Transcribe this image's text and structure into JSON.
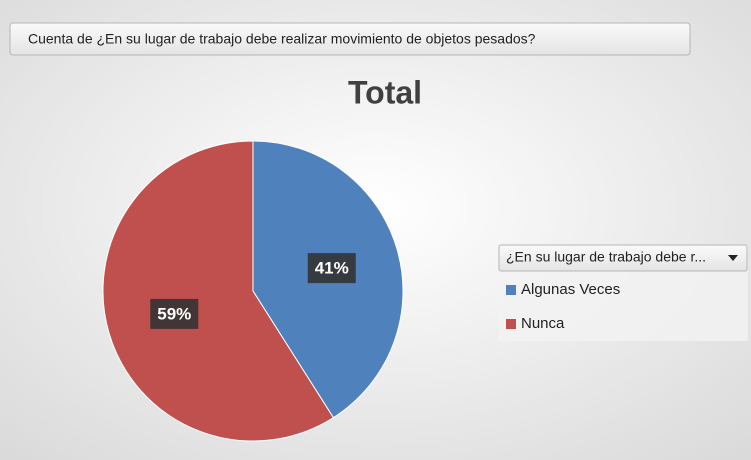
{
  "chart_data": {
    "type": "pie",
    "title": "Total",
    "value_field": "Cuenta de ¿En su lugar de trabajo debe realizar movimiento de objetos pesados?",
    "legend_field": "¿En su lugar de trabajo debe r...",
    "categories": [
      "Algunas Veces",
      "Nunca"
    ],
    "values": [
      41,
      59
    ],
    "value_labels": [
      "41%",
      "59%"
    ],
    "colors": [
      "#4f81bd",
      "#c0504d"
    ]
  }
}
